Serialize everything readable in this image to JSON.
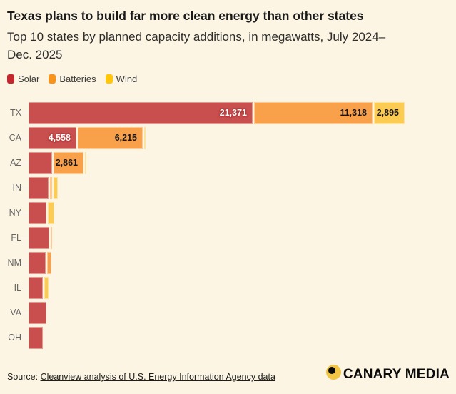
{
  "header": {
    "title": "Texas plans to build far more clean energy than other states",
    "subtitle": "Top 10 states by planned capacity additions, in megawatts, July 2024–Dec. 2025"
  },
  "legend": [
    {
      "label": "Solar",
      "color": "#C1272D"
    },
    {
      "label": "Batteries",
      "color": "#F7941E"
    },
    {
      "label": "Wind",
      "color": "#FFC60B"
    }
  ],
  "chart_data": {
    "type": "bar",
    "orientation": "horizontal-stacked",
    "title": "Texas plans to build far more clean energy than other states",
    "subtitle": "Top 10 states by planned capacity additions, in megawatts, July 2024–Dec. 2025",
    "unit": "megawatts",
    "xlim": [
      0,
      36000
    ],
    "grid": false,
    "legend_position": "top-left",
    "series_names": [
      "Solar",
      "Batteries",
      "Wind"
    ],
    "colors": {
      "solar": {
        "fill": "#C94E4E",
        "border": "#DD9C90",
        "label": "light"
      },
      "batteries": {
        "fill": "#F9A04B",
        "border": "#FBCA96",
        "label": "dark"
      },
      "wind": {
        "fill": "#FCCB52",
        "border": "#FDE49E",
        "label": "dark"
      }
    },
    "states": [
      {
        "code": "TX",
        "solar": 21371,
        "batteries": 11318,
        "wind": 2895,
        "labels": {
          "solar": "21,371",
          "batteries": "11,318",
          "wind": "2,895"
        }
      },
      {
        "code": "CA",
        "solar": 4558,
        "batteries": 6215,
        "wind": 150,
        "labels": {
          "solar": "4,558",
          "batteries": "6,215"
        }
      },
      {
        "code": "AZ",
        "solar": 2250,
        "batteries": 2861,
        "wind": 140,
        "labels": {
          "batteries": "2,861"
        }
      },
      {
        "code": "IN",
        "solar": 1900,
        "batteries": 200,
        "wind": 420,
        "labels": {}
      },
      {
        "code": "NY",
        "solar": 1700,
        "batteries": 0,
        "wind": 620,
        "labels": {}
      },
      {
        "code": "FL",
        "solar": 2000,
        "batteries": 140,
        "wind": 0,
        "labels": {}
      },
      {
        "code": "NM",
        "solar": 1600,
        "batteries": 400,
        "wind": 0,
        "labels": {}
      },
      {
        "code": "IL",
        "solar": 1350,
        "batteries": 0,
        "wind": 420,
        "labels": {}
      },
      {
        "code": "VA",
        "solar": 1680,
        "batteries": 0,
        "wind": 0,
        "labels": {}
      },
      {
        "code": "OH",
        "solar": 1380,
        "batteries": 0,
        "wind": 0,
        "labels": {}
      }
    ]
  },
  "footer": {
    "source_prefix": "Source: ",
    "source_link": "Cleanview analysis of U.S. Energy Information Agency data",
    "logo_text": "CANARY MEDIA"
  }
}
